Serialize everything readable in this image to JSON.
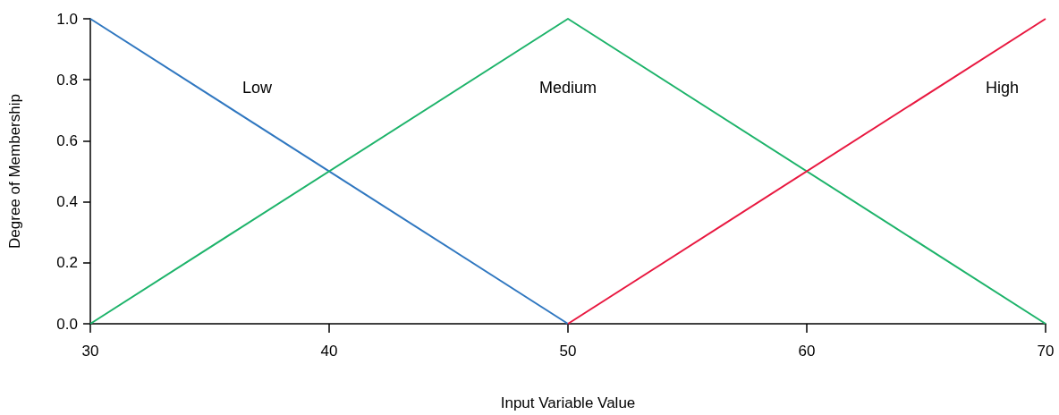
{
  "chart_data": {
    "type": "line",
    "xlabel": "Input Variable Value",
    "ylabel": "Degree of Membership",
    "xlim": [
      30,
      70
    ],
    "xticks": [
      30,
      40,
      50,
      60,
      70
    ],
    "ylim": [
      0,
      1
    ],
    "yticks": [
      {
        "value": 0,
        "label": "0.0"
      },
      {
        "value": 0.2,
        "label": "0.2"
      },
      {
        "value": 0.4,
        "label": "0.4"
      },
      {
        "value": 0.6,
        "label": "0.6"
      },
      {
        "value": 0.8,
        "label": "0.8"
      },
      {
        "value": 1,
        "label": "1.0"
      }
    ],
    "grid": false,
    "legend": false,
    "marker": "none",
    "line_style": "solid",
    "series": [
      {
        "name": "Low",
        "color": "#2f77c0",
        "x": [
          30,
          50
        ],
        "values": [
          1,
          0
        ]
      },
      {
        "name": "Medium",
        "color": "#1db36a",
        "x": [
          30,
          50,
          70
        ],
        "values": [
          0,
          1,
          0
        ]
      },
      {
        "name": "High",
        "color": "#e8173f",
        "x": [
          50,
          70
        ],
        "values": [
          0,
          1
        ]
      }
    ]
  }
}
